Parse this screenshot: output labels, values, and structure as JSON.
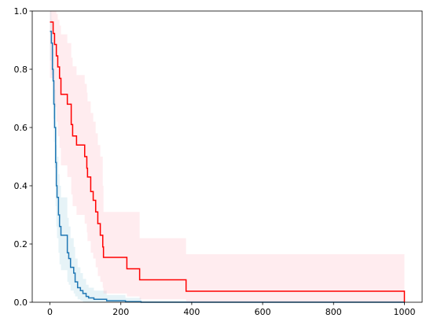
{
  "chart_data": {
    "type": "step",
    "xlim": [
      -50,
      1050
    ],
    "xticks": [
      0,
      200,
      400,
      600,
      800,
      1000
    ],
    "ylim": [
      0,
      1
    ],
    "yticks": [
      {
        "value": 0,
        "label": "0.0"
      },
      {
        "value": 0.2,
        "label": "0.2"
      },
      {
        "value": 0.4,
        "label": "0.4"
      },
      {
        "value": 0.6,
        "label": "0.6"
      },
      {
        "value": 0.8,
        "label": "0.8"
      },
      {
        "value": 1,
        "label": "1.0"
      }
    ],
    "series": [
      {
        "color": "#1f77b4",
        "band_color": "#add8e6",
        "x": [
          0,
          4,
          7,
          9,
          11,
          13,
          16,
          18,
          20,
          24,
          27,
          31,
          49,
          53,
          58,
          67,
          71,
          78,
          86,
          93,
          102,
          109,
          124,
          160,
          213,
          257,
          1000
        ],
        "values": [
          0.93,
          0.89,
          0.8,
          0.76,
          0.68,
          0.6,
          0.48,
          0.4,
          0.36,
          0.3,
          0.26,
          0.23,
          0.17,
          0.15,
          0.12,
          0.1,
          0.07,
          0.05,
          0.04,
          0.03,
          0.02,
          0.015,
          0.01,
          0.005,
          0.002,
          0,
          0
        ],
        "upper": [
          1,
          0.97,
          0.9,
          0.87,
          0.8,
          0.73,
          0.62,
          0.54,
          0.5,
          0.44,
          0.4,
          0.36,
          0.29,
          0.26,
          0.22,
          0.19,
          0.15,
          0.12,
          0.1,
          0.08,
          0.06,
          0.05,
          0.04,
          0.025,
          0.015,
          0.005,
          0.005
        ],
        "lower": [
          0.83,
          0.78,
          0.68,
          0.63,
          0.55,
          0.46,
          0.33,
          0.26,
          0.22,
          0.17,
          0.13,
          0.11,
          0.07,
          0.06,
          0.04,
          0.03,
          0.02,
          0.01,
          0.005,
          0,
          0,
          0,
          0,
          0,
          0,
          0,
          0
        ]
      },
      {
        "color": "#ff0000",
        "band_color": "#ffc0cb",
        "x": [
          0,
          9,
          13,
          18,
          22,
          27,
          31,
          49,
          60,
          64,
          75,
          98,
          104,
          106,
          115,
          122,
          129,
          135,
          142,
          149,
          151,
          217,
          253,
          384,
          1000
        ],
        "values": [
          0.962,
          0.923,
          0.885,
          0.846,
          0.808,
          0.769,
          0.714,
          0.68,
          0.61,
          0.571,
          0.54,
          0.5,
          0.46,
          0.43,
          0.38,
          0.35,
          0.31,
          0.27,
          0.23,
          0.19,
          0.154,
          0.115,
          0.077,
          0.038,
          0
        ],
        "upper": [
          1,
          1,
          1,
          0.99,
          0.97,
          0.95,
          0.92,
          0.89,
          0.84,
          0.81,
          0.78,
          0.75,
          0.72,
          0.69,
          0.65,
          0.62,
          0.58,
          0.54,
          0.5,
          0.4,
          0.31,
          0.31,
          0.22,
          0.165,
          0.165
        ],
        "lower": [
          0.77,
          0.72,
          0.67,
          0.62,
          0.57,
          0.53,
          0.47,
          0.43,
          0.37,
          0.33,
          0.3,
          0.27,
          0.24,
          0.21,
          0.17,
          0.15,
          0.12,
          0.09,
          0.07,
          0.05,
          0.03,
          0.02,
          0.01,
          0,
          0
        ]
      }
    ]
  }
}
